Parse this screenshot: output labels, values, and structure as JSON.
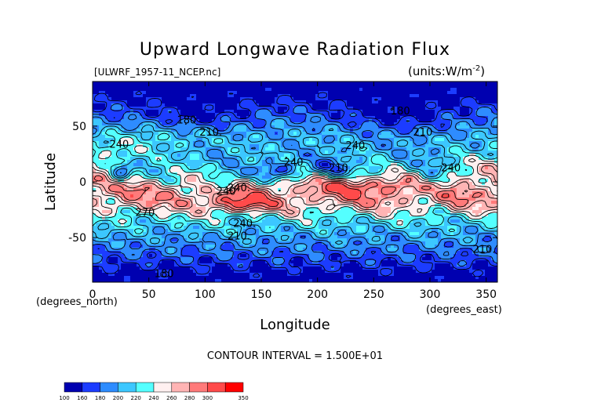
{
  "chart_data": {
    "type": "heatmap",
    "title": "Upward Longwave Radiation Flux",
    "subtitle_left": "[ULWRF_1957-11_NCEP.nc]",
    "subtitle_right": "(units:W/m^2)",
    "xlabel": "Longitude",
    "ylabel": "Latitude",
    "x_unit_label": "(degrees_east)",
    "y_unit_label": "(degrees_north)",
    "xlim": [
      0,
      360
    ],
    "ylim": [
      -90,
      90
    ],
    "x_ticks": [
      0,
      50,
      100,
      150,
      200,
      250,
      300,
      350
    ],
    "y_ticks": [
      -50,
      0,
      50
    ],
    "contour_interval_text": "CONTOUR INTERVAL = 1.500E+01",
    "contour_labels": [
      {
        "text": "180",
        "lon": 75,
        "lat": 56
      },
      {
        "text": "210.",
        "lon": 95,
        "lat": 45
      },
      {
        "text": "240",
        "lon": 15,
        "lat": 34
      },
      {
        "text": "180",
        "lon": 265,
        "lat": 64
      },
      {
        "text": "210",
        "lon": 285,
        "lat": 45
      },
      {
        "text": "240.",
        "lon": 225,
        "lat": 33
      },
      {
        "text": "240",
        "lon": 170,
        "lat": 18
      },
      {
        "text": "210.",
        "lon": 210,
        "lat": 13
      },
      {
        "text": "240",
        "lon": 310,
        "lat": 13
      },
      {
        "text": "240",
        "lon": 110,
        "lat": -8
      },
      {
        "text": "240.",
        "lon": 120,
        "lat": -5
      },
      {
        "text": "270.",
        "lon": 38,
        "lat": -27
      },
      {
        "text": "240.",
        "lon": 125,
        "lat": -37
      },
      {
        "text": "210.",
        "lon": 120,
        "lat": -48
      },
      {
        "text": "210.",
        "lon": 338,
        "lat": -60
      },
      {
        "text": "180",
        "lon": 55,
        "lat": -82
      }
    ],
    "colorbar": {
      "boundaries": [
        "100",
        "160",
        "180",
        "200",
        "220",
        "240",
        "260",
        "280",
        "300",
        "350"
      ],
      "colors": [
        "#0000b0",
        "#1c3cff",
        "#2e8cff",
        "#3cc7ff",
        "#54ffff",
        "#fff0f0",
        "#ffb4b4",
        "#ff7a7a",
        "#ff4a4a",
        "#ff0000"
      ]
    }
  }
}
